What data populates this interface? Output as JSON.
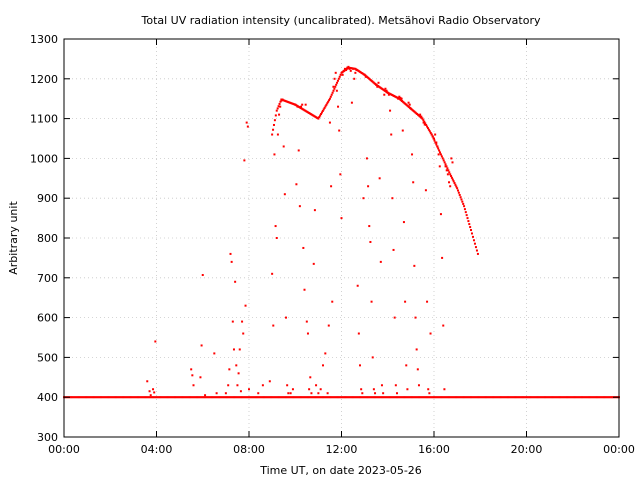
{
  "chart_data": {
    "type": "scatter",
    "title": "Total UV radiation intensity (uncalibrated). Metsähovi Radio Observatory",
    "xlabel": "Time UT, on date 2023-05-26",
    "ylabel": "Arbitrary unit",
    "x_unit": "hours UT",
    "xlim": [
      0,
      24
    ],
    "ylim": [
      300,
      1300
    ],
    "x_tick_values": [
      0,
      4,
      8,
      12,
      16,
      20,
      24
    ],
    "x_tick_labels": [
      "00:00",
      "04:00",
      "08:00",
      "12:00",
      "16:00",
      "20:00",
      "00:00"
    ],
    "y_ticks": [
      300,
      400,
      500,
      600,
      700,
      800,
      900,
      1000,
      1100,
      1200,
      1300
    ],
    "grid": true,
    "marker_color": "#ff0000",
    "baseline": {
      "value": 400,
      "x_start": 0,
      "x_end": 24,
      "step": 0.05
    },
    "envelope": [
      [
        9.0,
        1060
      ],
      [
        9.2,
        1120
      ],
      [
        9.4,
        1148
      ],
      [
        10.0,
        1135
      ],
      [
        11.0,
        1100
      ],
      [
        11.5,
        1150
      ],
      [
        12.0,
        1215
      ],
      [
        12.3,
        1228
      ],
      [
        12.6,
        1225
      ],
      [
        13.0,
        1210
      ],
      [
        13.5,
        1185
      ],
      [
        14.0,
        1165
      ],
      [
        14.5,
        1150
      ],
      [
        15.0,
        1125
      ],
      [
        15.5,
        1100
      ],
      [
        15.9,
        1060
      ],
      [
        16.3,
        1010
      ],
      [
        16.7,
        960
      ],
      [
        17.0,
        925
      ],
      [
        17.3,
        880
      ],
      [
        17.6,
        820
      ],
      [
        17.9,
        760
      ]
    ],
    "series": [
      {
        "values": [
          [
            3.6,
            440
          ],
          [
            3.7,
            415
          ],
          [
            3.75,
            405
          ],
          [
            3.85,
            420
          ],
          [
            3.9,
            412
          ],
          [
            3.95,
            540
          ],
          [
            5.5,
            470
          ],
          [
            5.55,
            455
          ],
          [
            5.6,
            430
          ],
          [
            5.9,
            450
          ],
          [
            5.95,
            530
          ],
          [
            6.0,
            707
          ],
          [
            6.1,
            405
          ],
          [
            6.5,
            510
          ],
          [
            6.6,
            410
          ],
          [
            7.0,
            410
          ],
          [
            7.1,
            430
          ],
          [
            7.15,
            470
          ],
          [
            7.2,
            760
          ],
          [
            7.25,
            740
          ],
          [
            7.3,
            590
          ],
          [
            7.35,
            520
          ],
          [
            7.4,
            690
          ],
          [
            7.45,
            480
          ],
          [
            7.5,
            430
          ],
          [
            7.55,
            460
          ],
          [
            7.6,
            520
          ],
          [
            7.65,
            415
          ],
          [
            7.7,
            590
          ],
          [
            7.75,
            560
          ],
          [
            7.8,
            995
          ],
          [
            7.85,
            630
          ],
          [
            7.9,
            1090
          ],
          [
            7.95,
            1080
          ],
          [
            8.0,
            420
          ],
          [
            8.4,
            410
          ],
          [
            8.6,
            430
          ],
          [
            8.9,
            440
          ],
          [
            9.0,
            710
          ],
          [
            9.05,
            580
          ],
          [
            9.1,
            1010
          ],
          [
            9.15,
            830
          ],
          [
            9.2,
            800
          ],
          [
            9.25,
            1060
          ],
          [
            9.3,
            1110
          ],
          [
            9.35,
            1130
          ],
          [
            9.4,
            1145
          ],
          [
            9.45,
            1148
          ],
          [
            9.5,
            1030
          ],
          [
            9.55,
            910
          ],
          [
            9.6,
            600
          ],
          [
            9.65,
            430
          ],
          [
            9.7,
            410
          ],
          [
            9.8,
            410
          ],
          [
            9.9,
            420
          ],
          [
            10.0,
            1135
          ],
          [
            10.05,
            935
          ],
          [
            10.1,
            1130
          ],
          [
            10.15,
            1020
          ],
          [
            10.2,
            880
          ],
          [
            10.25,
            1130
          ],
          [
            10.3,
            1135
          ],
          [
            10.35,
            775
          ],
          [
            10.4,
            670
          ],
          [
            10.45,
            1135
          ],
          [
            10.5,
            590
          ],
          [
            10.55,
            560
          ],
          [
            10.6,
            420
          ],
          [
            10.65,
            450
          ],
          [
            10.7,
            410
          ],
          [
            10.8,
            735
          ],
          [
            10.85,
            870
          ],
          [
            10.9,
            430
          ],
          [
            11.0,
            410
          ],
          [
            11.1,
            420
          ],
          [
            11.2,
            480
          ],
          [
            11.3,
            510
          ],
          [
            11.4,
            410
          ],
          [
            11.45,
            580
          ],
          [
            11.5,
            1090
          ],
          [
            11.55,
            930
          ],
          [
            11.6,
            640
          ],
          [
            11.65,
            1180
          ],
          [
            11.7,
            1200
          ],
          [
            11.75,
            1215
          ],
          [
            11.8,
            1170
          ],
          [
            11.85,
            1130
          ],
          [
            11.9,
            1070
          ],
          [
            11.95,
            960
          ],
          [
            12.0,
            850
          ],
          [
            12.05,
            1210
          ],
          [
            12.1,
            1220
          ],
          [
            12.15,
            1225
          ],
          [
            12.2,
            1222
          ],
          [
            12.25,
            1228
          ],
          [
            12.3,
            1230
          ],
          [
            12.35,
            1225
          ],
          [
            12.4,
            1220
          ],
          [
            12.45,
            1140
          ],
          [
            12.5,
            1225
          ],
          [
            12.55,
            1200
          ],
          [
            12.6,
            1215
          ],
          [
            12.65,
            1222
          ],
          [
            12.7,
            680
          ],
          [
            12.75,
            560
          ],
          [
            12.8,
            480
          ],
          [
            12.85,
            420
          ],
          [
            12.9,
            410
          ],
          [
            12.95,
            900
          ],
          [
            13.0,
            1210
          ],
          [
            13.05,
            1205
          ],
          [
            13.1,
            1000
          ],
          [
            13.15,
            930
          ],
          [
            13.2,
            830
          ],
          [
            13.25,
            790
          ],
          [
            13.3,
            640
          ],
          [
            13.35,
            500
          ],
          [
            13.4,
            420
          ],
          [
            13.45,
            410
          ],
          [
            13.5,
            1185
          ],
          [
            13.55,
            1180
          ],
          [
            13.6,
            1190
          ],
          [
            13.65,
            950
          ],
          [
            13.7,
            740
          ],
          [
            13.75,
            430
          ],
          [
            13.8,
            410
          ],
          [
            13.85,
            1160
          ],
          [
            13.9,
            1175
          ],
          [
            13.95,
            1170
          ],
          [
            14.0,
            1165
          ],
          [
            14.05,
            1160
          ],
          [
            14.1,
            1120
          ],
          [
            14.15,
            1060
          ],
          [
            14.2,
            900
          ],
          [
            14.25,
            770
          ],
          [
            14.3,
            600
          ],
          [
            14.35,
            430
          ],
          [
            14.4,
            410
          ],
          [
            14.45,
            1150
          ],
          [
            14.5,
            1155
          ],
          [
            14.55,
            1152
          ],
          [
            14.6,
            1150
          ],
          [
            14.65,
            1070
          ],
          [
            14.7,
            840
          ],
          [
            14.75,
            640
          ],
          [
            14.8,
            480
          ],
          [
            14.85,
            420
          ],
          [
            14.9,
            1140
          ],
          [
            14.95,
            1135
          ],
          [
            15.0,
            1125
          ],
          [
            15.05,
            1010
          ],
          [
            15.1,
            940
          ],
          [
            15.15,
            730
          ],
          [
            15.2,
            600
          ],
          [
            15.25,
            520
          ],
          [
            15.3,
            470
          ],
          [
            15.35,
            430
          ],
          [
            15.4,
            1110
          ],
          [
            15.45,
            1105
          ],
          [
            15.5,
            1100
          ],
          [
            15.55,
            1090
          ],
          [
            15.6,
            1085
          ],
          [
            15.65,
            920
          ],
          [
            15.7,
            640
          ],
          [
            15.75,
            420
          ],
          [
            15.8,
            410
          ],
          [
            15.85,
            560
          ],
          [
            15.9,
            1060
          ],
          [
            15.95,
            1055
          ],
          [
            16.0,
            1050
          ],
          [
            16.05,
            1060
          ],
          [
            16.1,
            1040
          ],
          [
            16.15,
            1030
          ],
          [
            16.2,
            1010
          ],
          [
            16.25,
            980
          ],
          [
            16.3,
            860
          ],
          [
            16.35,
            750
          ],
          [
            16.4,
            580
          ],
          [
            16.45,
            420
          ],
          [
            16.5,
            980
          ],
          [
            16.55,
            970
          ],
          [
            16.6,
            960
          ],
          [
            16.65,
            940
          ],
          [
            16.7,
            930
          ],
          [
            16.75,
            1000
          ],
          [
            16.8,
            990
          ]
        ]
      }
    ]
  }
}
